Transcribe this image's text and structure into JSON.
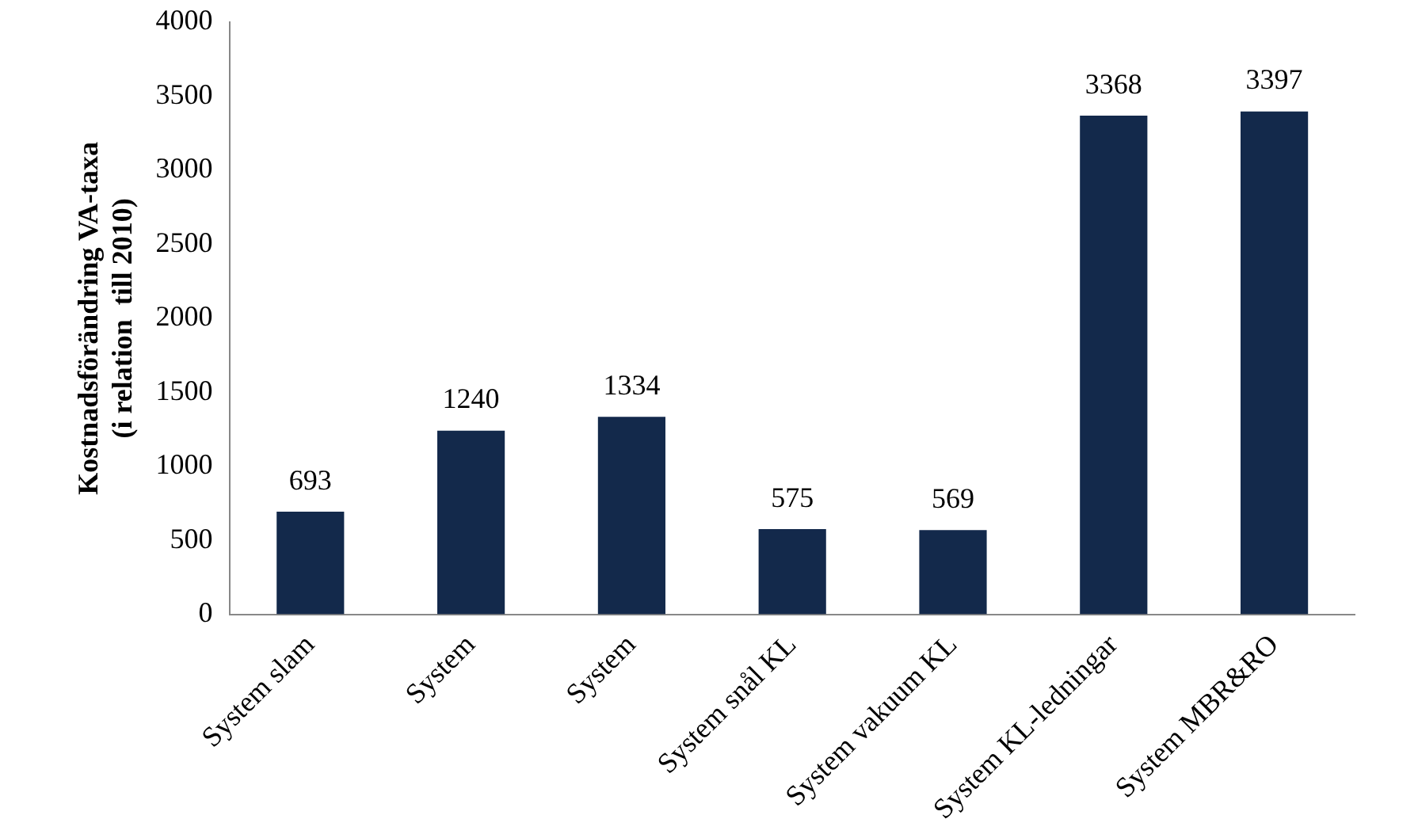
{
  "chart_data": {
    "type": "bar",
    "ylabel": "Kostnadsförändring VA-taxa\n(i relation  till 2010)",
    "categories": [
      "System slam",
      "System",
      "System",
      "System snål KL",
      "System vakuum KL",
      "System KL-ledningar",
      "System MBR&RO"
    ],
    "values": [
      693,
      1240,
      1334,
      575,
      569,
      3368,
      3397
    ],
    "color": "#13294b",
    "ylim": [
      0,
      4000
    ],
    "yticks": [
      0,
      500,
      1000,
      1500,
      2000,
      2500,
      3000,
      3500,
      4000
    ],
    "grid": false,
    "data_labels": true,
    "legend": false
  }
}
